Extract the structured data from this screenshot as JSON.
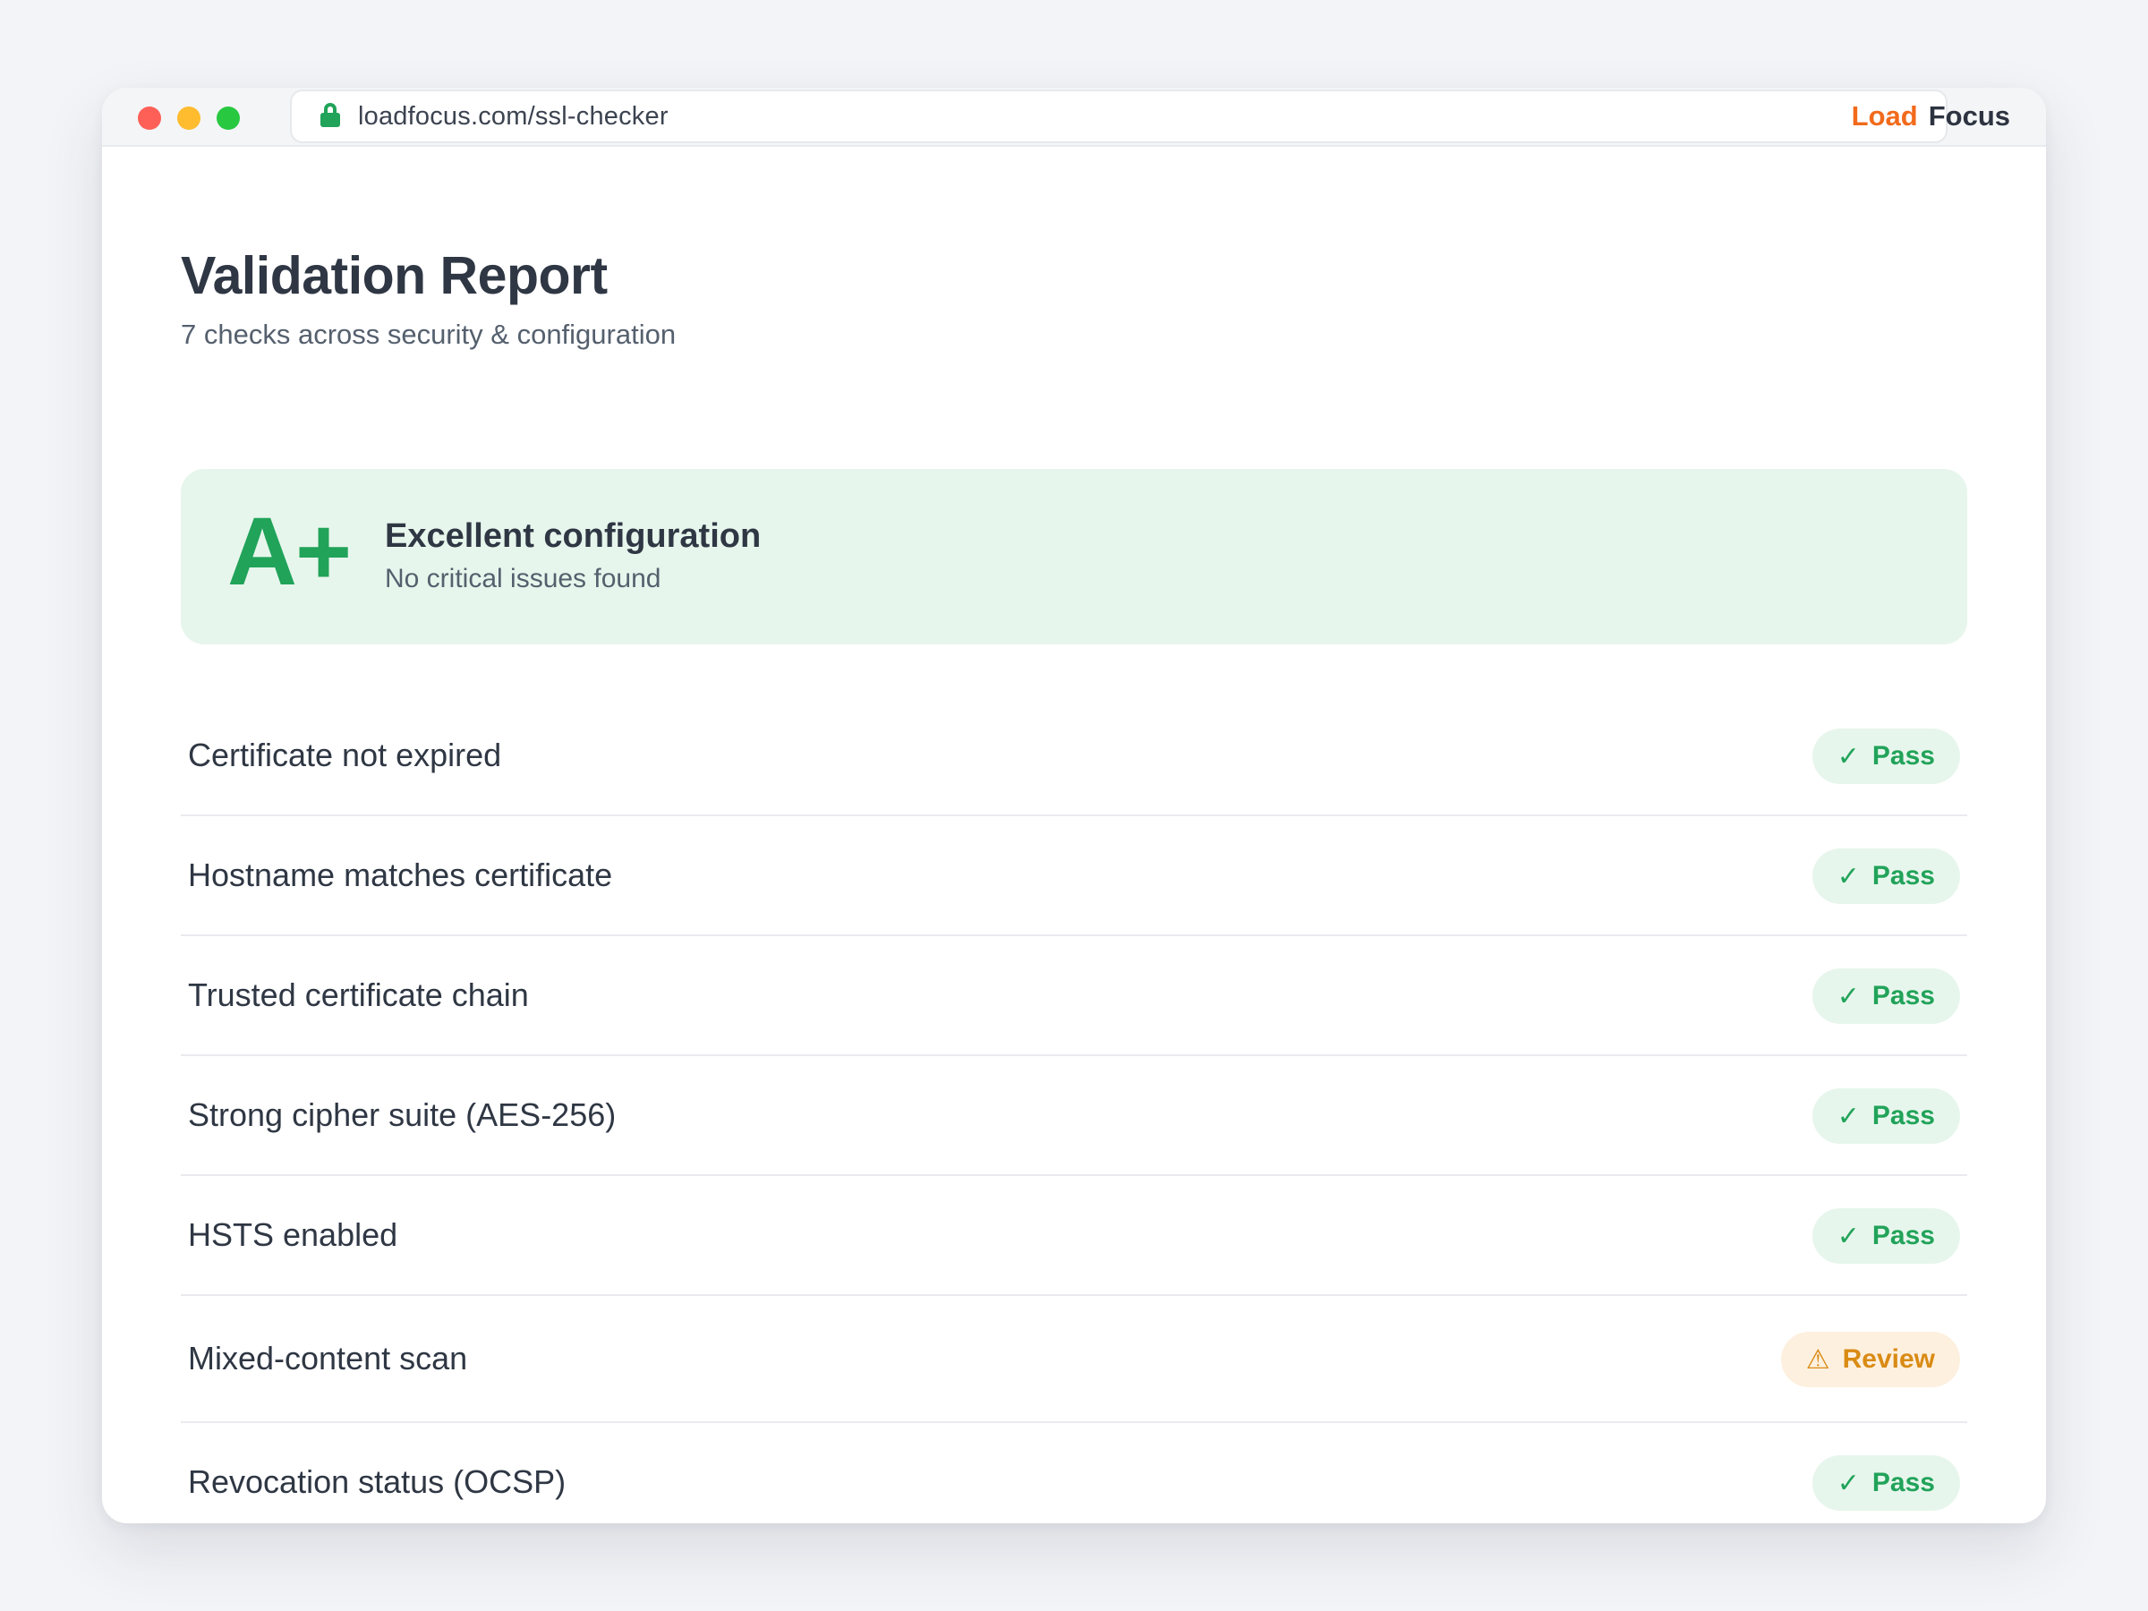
{
  "browser": {
    "url": "loadfocus.com/ssl-checker",
    "brand_load": "Load",
    "brand_focus": "Focus"
  },
  "report": {
    "title": "Validation Report",
    "subtitle": "7 checks across security & configuration"
  },
  "grade": {
    "letter": "A+",
    "title": "Excellent configuration",
    "subtitle": "No critical issues found",
    "color": "#21a35a"
  },
  "checks": [
    {
      "label": "Certificate not expired",
      "status": "Pass",
      "icon": "check-icon",
      "glyph": "✓"
    },
    {
      "label": "Hostname matches certificate",
      "status": "Pass",
      "icon": "check-icon",
      "glyph": "✓"
    },
    {
      "label": "Trusted certificate chain",
      "status": "Pass",
      "icon": "check-icon",
      "glyph": "✓"
    },
    {
      "label": "Strong cipher suite (AES-256)",
      "status": "Pass",
      "icon": "check-icon",
      "glyph": "✓"
    },
    {
      "label": "HSTS enabled",
      "status": "Pass",
      "icon": "check-icon",
      "glyph": "✓"
    },
    {
      "label": "Mixed-content scan",
      "status": "Review",
      "icon": "warning-icon",
      "glyph": "⚠"
    },
    {
      "label": "Revocation status (OCSP)",
      "status": "Pass",
      "icon": "check-icon",
      "glyph": "✓"
    }
  ],
  "colors": {
    "pass": "#21a35a",
    "review": "#d98b14",
    "brand_orange": "#f26a1b"
  }
}
